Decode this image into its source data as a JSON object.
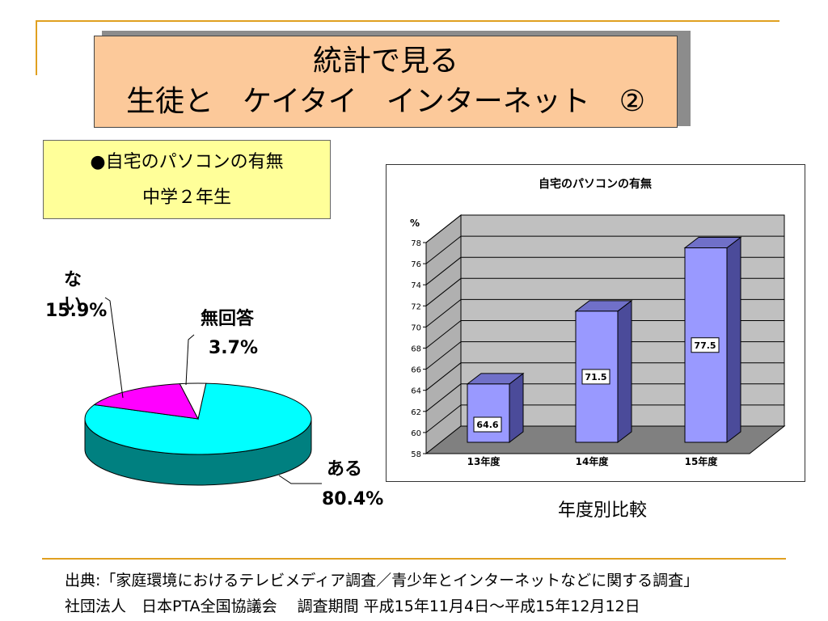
{
  "title": {
    "line1": "統計で見る",
    "line2": "生徒と　ケイタイ　インターネット　②"
  },
  "label_box": {
    "line1": "●自宅のパソコンの有無",
    "line2": "中学２年生"
  },
  "bar_caption": "年度別比較",
  "footnote": {
    "line1": "出典:「家庭環境におけるテレビメディア調査／青少年とインターネットなどに関する調査」",
    "line2": "社団法人　日本PTA全国協議会　 調査期間 平成15年11月4日～平成15年12月12日"
  },
  "colors": {
    "accent_rule": "#e0a020",
    "title_bg": "#fcc99a",
    "label_bg": "#ffff99",
    "pie_aru": "#00ffff",
    "pie_aru_side": "#008080",
    "pie_nai": "#ff00ff",
    "pie_muka": "#ffffff",
    "bar_front": "#9999ff",
    "bar_side": "#4b4b9a",
    "bar_top": "#7070c8",
    "plot_bg": "#c0c0c0"
  },
  "chart_data": [
    {
      "type": "pie",
      "title": "",
      "slices": [
        {
          "label": "ある",
          "value": 80.4,
          "value_text": "80.4%"
        },
        {
          "label": "ない",
          "value": 15.9,
          "value_text": "15.9%"
        },
        {
          "label": "無回答",
          "value": 3.7,
          "value_text": "3.7%"
        }
      ]
    },
    {
      "type": "bar",
      "title": "自宅のパソコンの有無",
      "ylabel": "%",
      "xlabel": "",
      "categories": [
        "13年度",
        "14年度",
        "15年度"
      ],
      "values": [
        64.6,
        71.5,
        77.5
      ],
      "value_labels": [
        "64.6",
        "71.5",
        "77.5"
      ],
      "ylim": [
        58,
        78
      ],
      "yticks": [
        "58",
        "60",
        "62",
        "64",
        "66",
        "68",
        "70",
        "72",
        "74",
        "76",
        "78"
      ],
      "grid": true,
      "three_d": true
    }
  ]
}
